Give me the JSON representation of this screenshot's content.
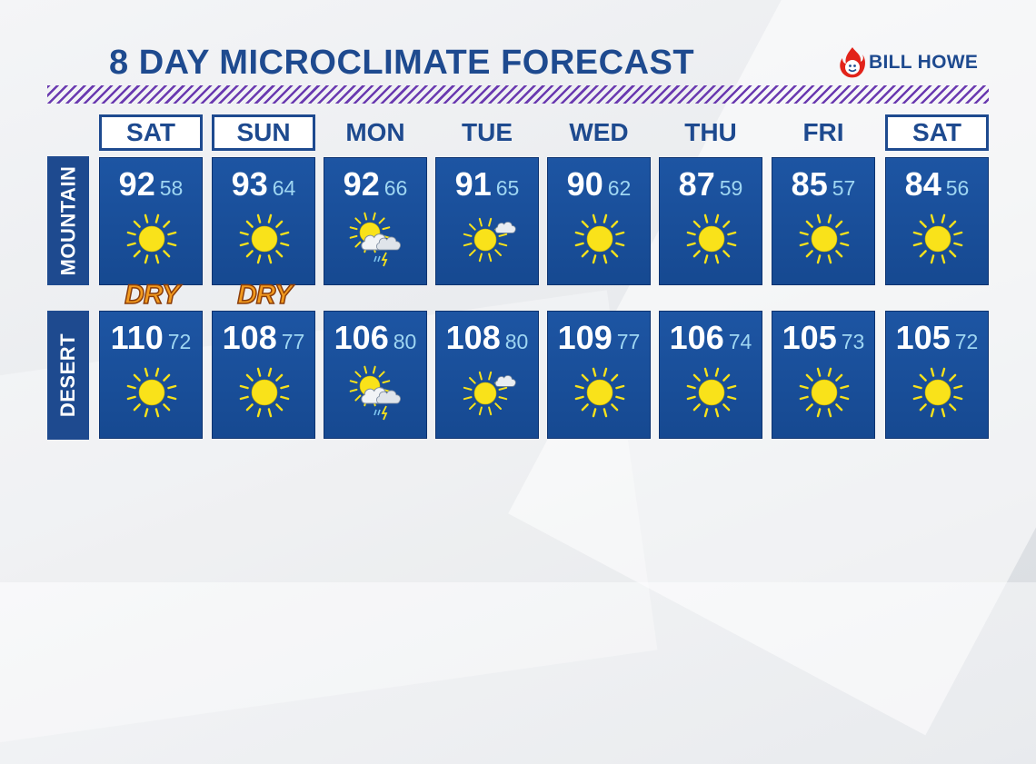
{
  "title": "8 DAY MICROCLIMATE FORECAST",
  "sponsor": {
    "name": "BILL HOWE"
  },
  "days": [
    {
      "label": "SAT",
      "boxed": true
    },
    {
      "label": "SUN",
      "boxed": true
    },
    {
      "label": "MON",
      "boxed": false
    },
    {
      "label": "TUE",
      "boxed": false
    },
    {
      "label": "WED",
      "boxed": false
    },
    {
      "label": "THU",
      "boxed": false
    },
    {
      "label": "FRI",
      "boxed": false
    },
    {
      "label": "SAT",
      "boxed": true
    }
  ],
  "rows": [
    {
      "label": "MOUNTAIN",
      "forecasts": [
        {
          "high": "92",
          "low": "58",
          "icon": "sunny-icon"
        },
        {
          "high": "93",
          "low": "64",
          "icon": "sunny-icon"
        },
        {
          "high": "92",
          "low": "66",
          "icon": "thunderstorm-icon"
        },
        {
          "high": "91",
          "low": "65",
          "icon": "mostly-sunny-icon"
        },
        {
          "high": "90",
          "low": "62",
          "icon": "sunny-icon"
        },
        {
          "high": "87",
          "low": "59",
          "icon": "sunny-icon"
        },
        {
          "high": "85",
          "low": "57",
          "icon": "sunny-icon"
        },
        {
          "high": "84",
          "low": "56",
          "icon": "sunny-icon"
        }
      ]
    },
    {
      "label": "DESERT",
      "forecasts": [
        {
          "high": "110",
          "low": "72",
          "icon": "sunny-icon"
        },
        {
          "high": "108",
          "low": "77",
          "icon": "sunny-icon"
        },
        {
          "high": "106",
          "low": "80",
          "icon": "thunderstorm-icon"
        },
        {
          "high": "108",
          "low": "80",
          "icon": "mostly-sunny-icon"
        },
        {
          "high": "109",
          "low": "77",
          "icon": "sunny-icon"
        },
        {
          "high": "106",
          "low": "74",
          "icon": "sunny-icon"
        },
        {
          "high": "105",
          "low": "73",
          "icon": "sunny-icon"
        },
        {
          "high": "105",
          "low": "72",
          "icon": "sunny-icon"
        }
      ]
    }
  ],
  "dry_labels": [
    {
      "text": "DRY",
      "day_index": 0
    },
    {
      "text": "DRY",
      "day_index": 1
    }
  ],
  "colors": {
    "primary": "#1e4a8f",
    "card": "#1d55a3",
    "low_temp": "#9fd6f2",
    "stripe": "#6a3ab0",
    "dry": "#f29a1e"
  }
}
